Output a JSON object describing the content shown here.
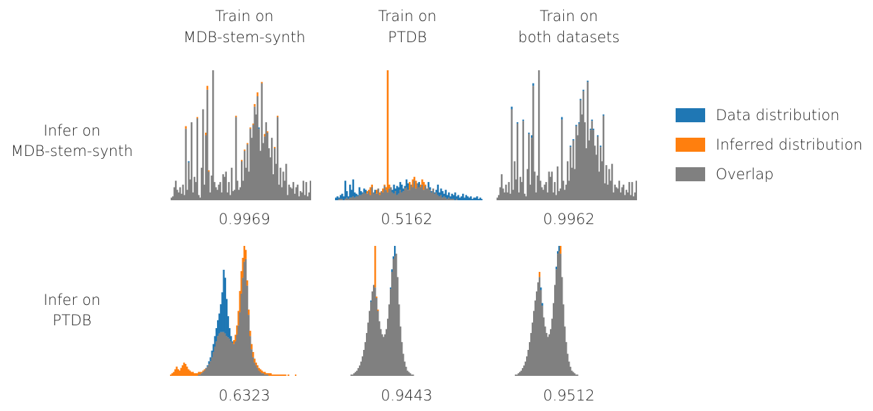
{
  "columns": [
    {
      "line1": "Train on",
      "line2": "MDB-stem-synth"
    },
    {
      "line1": "Train on",
      "line2": "PTDB"
    },
    {
      "line1": "Train on",
      "line2": "both datasets"
    }
  ],
  "rows": [
    {
      "line1": "Infer on",
      "line2": "MDB-stem-synth"
    },
    {
      "line1": "Infer on",
      "line2": "PTDB"
    }
  ],
  "legend": [
    {
      "label": "Data distribution",
      "color": "#1f77b4"
    },
    {
      "label": "Inferred distribution",
      "color": "#ff7f0e"
    },
    {
      "label": "Overlap",
      "color": "#808080"
    }
  ],
  "chart_data": [
    {
      "type": "bar",
      "row": "Infer on MDB-stem-synth",
      "column": "Train on MDB-stem-synth",
      "score": "0.9969",
      "data": [
        2,
        3,
        10,
        15,
        8,
        6,
        10,
        5,
        12,
        4,
        55,
        8,
        30,
        16,
        60,
        6,
        18,
        14,
        63,
        4,
        2,
        25,
        70,
        12,
        50,
        85,
        22,
        6,
        19,
        100,
        14,
        10,
        8,
        12,
        14,
        6,
        20,
        18,
        22,
        6,
        14,
        4,
        25,
        7,
        8,
        64,
        15,
        8,
        10,
        30,
        15,
        38,
        25,
        43,
        22,
        55,
        48,
        58,
        72,
        66,
        80,
        56,
        38,
        90,
        44,
        49,
        60,
        52,
        40,
        33,
        48,
        20,
        40,
        28,
        64,
        12,
        25,
        10,
        22,
        15,
        28,
        4,
        12,
        10,
        9,
        14,
        5,
        10,
        12,
        3,
        7,
        6,
        15,
        4,
        14,
        3,
        6,
        15
      ],
      "inferred": [
        2,
        3,
        10,
        15,
        8,
        6,
        10,
        5,
        12,
        4,
        57,
        8,
        29,
        16,
        60,
        6,
        18,
        14,
        64,
        4,
        2,
        25,
        70,
        12,
        52,
        88,
        23,
        6,
        19,
        100,
        14,
        10,
        8,
        12,
        14,
        6,
        20,
        18,
        22,
        6,
        14,
        4,
        25,
        7,
        8,
        65,
        15,
        8,
        10,
        31,
        15,
        39,
        25,
        44,
        22,
        56,
        48,
        59,
        74,
        66,
        83,
        55,
        38,
        91,
        44,
        51,
        60,
        53,
        40,
        33,
        48,
        20,
        41,
        28,
        65,
        12,
        25,
        10,
        22,
        15,
        28,
        4,
        12,
        10,
        9,
        14,
        5,
        10,
        12,
        3,
        7,
        6,
        15,
        4,
        14,
        3,
        6,
        15
      ]
    },
    {
      "type": "bar",
      "row": "Infer on MDB-stem-synth",
      "column": "Train on PTDB",
      "score": "0.5162",
      "data": [
        2,
        3,
        2,
        4,
        5,
        3,
        15,
        7,
        3,
        12,
        8,
        16,
        6,
        5,
        4,
        10,
        7,
        6,
        9,
        8,
        5,
        7,
        4,
        10,
        6,
        8,
        5,
        9,
        4,
        7,
        6,
        11,
        8,
        6,
        9,
        10,
        8,
        12,
        9,
        11,
        10,
        14,
        12,
        9,
        11,
        16,
        13,
        8,
        12,
        10,
        15,
        9,
        13,
        14,
        10,
        12,
        8,
        11,
        9,
        14,
        10,
        7,
        9,
        6,
        8,
        12,
        6,
        9,
        7,
        5,
        8,
        4,
        6,
        3,
        5,
        4,
        6,
        3,
        4,
        2,
        3,
        5,
        2,
        4,
        3,
        2,
        3,
        1,
        2,
        2,
        3,
        1,
        2,
        1
      ],
      "inferred": [
        0,
        0,
        1,
        1,
        1,
        0,
        1,
        2,
        1,
        2,
        2,
        3,
        2,
        3,
        3,
        4,
        4,
        5,
        6,
        5,
        7,
        8,
        10,
        12,
        6,
        5,
        8,
        9,
        6,
        7,
        9,
        12,
        10,
        100,
        12,
        10,
        6,
        5,
        7,
        4,
        5,
        8,
        6,
        7,
        9,
        10,
        8,
        14,
        12,
        16,
        18,
        15,
        13,
        10,
        12,
        16,
        14,
        12,
        9,
        10,
        8,
        6,
        9,
        5,
        6,
        4,
        3,
        4,
        2,
        3,
        2,
        1,
        2,
        1,
        1,
        1,
        0,
        1,
        0,
        0,
        0,
        0,
        0,
        0,
        0,
        0,
        0,
        0,
        0,
        0,
        0,
        0,
        0,
        0
      ]
    },
    {
      "type": "bar",
      "row": "Infer on MDB-stem-synth",
      "column": "Train on both datasets",
      "score": "0.9962",
      "data": [
        2,
        4,
        10,
        20,
        9,
        6,
        12,
        6,
        14,
        5,
        72,
        8,
        30,
        16,
        60,
        6,
        18,
        14,
        62,
        5,
        3,
        24,
        52,
        12,
        50,
        90,
        22,
        6,
        19,
        100,
        15,
        10,
        8,
        12,
        14,
        6,
        22,
        18,
        22,
        6,
        14,
        4,
        26,
        7,
        9,
        64,
        15,
        8,
        12,
        30,
        15,
        42,
        25,
        47,
        24,
        58,
        50,
        60,
        78,
        66,
        85,
        60,
        40,
        92,
        46,
        55,
        62,
        55,
        42,
        35,
        50,
        22,
        42,
        30,
        66,
        13,
        27,
        12,
        24,
        15,
        28,
        6,
        12,
        10,
        9,
        15,
        6,
        10,
        12,
        4,
        8,
        6,
        14,
        4,
        14,
        3,
        6,
        15
      ],
      "inferred": [
        2,
        4,
        10,
        20,
        9,
        6,
        12,
        6,
        14,
        5,
        70,
        8,
        30,
        16,
        59,
        6,
        18,
        14,
        61,
        5,
        3,
        24,
        51,
        12,
        48,
        88,
        22,
        6,
        19,
        100,
        15,
        10,
        8,
        12,
        14,
        6,
        22,
        18,
        22,
        6,
        14,
        4,
        26,
        7,
        9,
        62,
        15,
        8,
        12,
        30,
        15,
        41,
        25,
        46,
        24,
        57,
        50,
        59,
        77,
        66,
        84,
        60,
        40,
        91,
        46,
        54,
        61,
        54,
        42,
        35,
        49,
        22,
        41,
        30,
        65,
        13,
        27,
        12,
        24,
        15,
        28,
        6,
        12,
        10,
        9,
        15,
        6,
        10,
        12,
        4,
        8,
        6,
        14,
        4,
        14,
        3,
        6,
        15
      ]
    },
    {
      "type": "bar",
      "row": "Infer on PTDB",
      "column": "Train on MDB-stem-synth",
      "score": "0.6323",
      "data": [
        0,
        0,
        0,
        0,
        0,
        0,
        0,
        0,
        0,
        0,
        0,
        0,
        0,
        0,
        0,
        0,
        0,
        0,
        0,
        1,
        1,
        2,
        3,
        4,
        6,
        8,
        11,
        14,
        19,
        24,
        30,
        36,
        42,
        47,
        54,
        63,
        80,
        74,
        58,
        45,
        36,
        30,
        26,
        24,
        26,
        31,
        38,
        48,
        62,
        74,
        86,
        88,
        68,
        46,
        30,
        20,
        14,
        10,
        8,
        6,
        4,
        3,
        2,
        2,
        1,
        1,
        1,
        0,
        0,
        0,
        0,
        0,
        0,
        0,
        0,
        0,
        0,
        0,
        0,
        0,
        0,
        0,
        0,
        0,
        0,
        0
      ],
      "inferred": [
        1,
        2,
        3,
        5,
        7,
        5,
        4,
        6,
        8,
        10,
        9,
        7,
        5,
        4,
        3,
        3,
        2,
        2,
        2,
        3,
        3,
        3,
        4,
        5,
        6,
        7,
        9,
        11,
        14,
        18,
        22,
        26,
        30,
        32,
        33,
        33,
        33,
        32,
        30,
        29,
        28,
        26,
        25,
        27,
        31,
        38,
        49,
        64,
        79,
        89,
        98,
        95,
        72,
        50,
        34,
        24,
        18,
        13,
        10,
        8,
        6,
        5,
        4,
        3,
        3,
        2,
        2,
        2,
        2,
        1,
        1,
        1,
        1,
        1,
        1,
        1,
        1,
        1,
        1,
        0,
        1,
        0,
        0,
        0,
        0,
        1
      ]
    },
    {
      "type": "bar",
      "row": "Infer on PTDB",
      "column": "Train on PTDB",
      "score": "0.9443",
      "data": [
        0,
        0,
        0,
        1,
        1,
        2,
        3,
        4,
        6,
        8,
        11,
        15,
        20,
        26,
        33,
        41,
        50,
        58,
        65,
        70,
        68,
        60,
        50,
        42,
        36,
        32,
        30,
        32,
        36,
        44,
        55,
        68,
        82,
        92,
        100,
        94,
        76,
        55,
        38,
        26,
        17,
        11,
        7,
        4,
        3,
        2,
        1,
        1,
        0,
        0
      ],
      "inferred": [
        0,
        0,
        0,
        1,
        1,
        2,
        3,
        4,
        6,
        8,
        11,
        15,
        20,
        26,
        33,
        41,
        50,
        57,
        65,
        70,
        100,
        61,
        51,
        42,
        36,
        32,
        30,
        32,
        36,
        44,
        55,
        67,
        80,
        90,
        92,
        94,
        76,
        55,
        38,
        26,
        17,
        11,
        7,
        4,
        3,
        2,
        1,
        1,
        0,
        0
      ]
    },
    {
      "type": "bar",
      "row": "Infer on PTDB",
      "column": "Train on both datasets",
      "score": "0.9512",
      "data": [
        0,
        0,
        0,
        1,
        1,
        2,
        3,
        4,
        6,
        8,
        11,
        15,
        20,
        26,
        33,
        41,
        50,
        58,
        65,
        72,
        76,
        68,
        56,
        45,
        38,
        33,
        30,
        32,
        36,
        44,
        56,
        70,
        84,
        96,
        100,
        94,
        76,
        55,
        38,
        26,
        17,
        11,
        7,
        4,
        3,
        2,
        1,
        1,
        0,
        0
      ],
      "inferred": [
        0,
        0,
        0,
        1,
        1,
        2,
        3,
        4,
        6,
        8,
        11,
        15,
        20,
        26,
        33,
        41,
        50,
        58,
        65,
        72,
        80,
        66,
        54,
        45,
        38,
        33,
        30,
        32,
        36,
        44,
        56,
        70,
        82,
        94,
        96,
        100,
        76,
        55,
        38,
        26,
        17,
        11,
        7,
        4,
        3,
        2,
        1,
        1,
        0,
        0
      ]
    }
  ]
}
